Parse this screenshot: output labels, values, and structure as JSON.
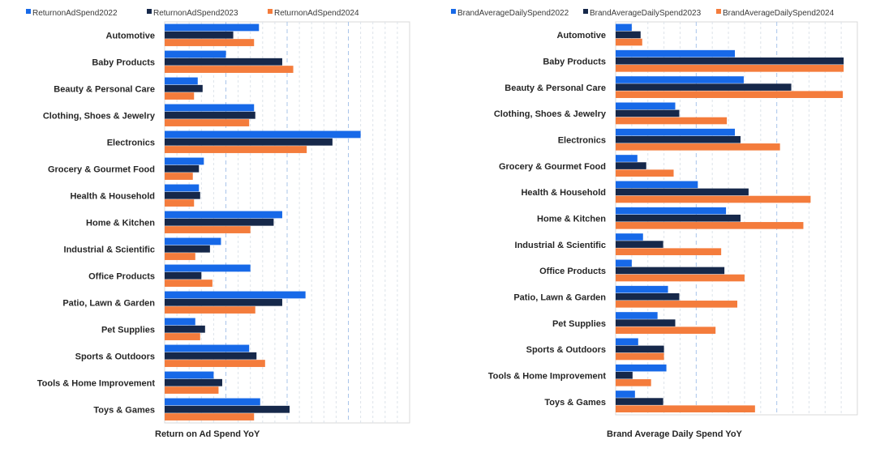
{
  "colors": {
    "s2022": "#1769e8",
    "s2023": "#16284a",
    "s2024": "#f47c3c",
    "grid": "#dde3ea",
    "grid_major": "#a9c4ea",
    "plot_border": "#d9d9d9"
  },
  "chart_data": [
    {
      "type": "bar",
      "orientation": "horizontal",
      "xlabel": "Return on Ad Spend YoY",
      "grid": true,
      "legend_position": "top",
      "xlim": [
        0,
        20
      ],
      "categories": [
        "Automotive",
        "Baby Products",
        "Beauty & Personal Care",
        "Clothing, Shoes & Jewelry",
        "Electronics",
        "Grocery & Gourmet Food",
        "Health & Household",
        "Home & Kitchen",
        "Industrial & Scientific",
        "Office Products",
        "Patio, Lawn & Garden",
        "Pet Supplies",
        "Sports & Outdoors",
        "Tools & Home Improvement",
        "Toys & Games"
      ],
      "series": [
        {
          "name": "ReturnonAdSpend2022",
          "values": [
            7.7,
            5.0,
            2.7,
            7.3,
            16.0,
            3.2,
            2.8,
            9.6,
            4.6,
            7.0,
            11.5,
            2.5,
            6.9,
            4.0,
            7.8
          ]
        },
        {
          "name": "ReturnonAdSpend2023",
          "values": [
            5.6,
            9.6,
            3.1,
            7.4,
            13.7,
            2.8,
            2.9,
            8.9,
            3.7,
            3.0,
            9.6,
            3.3,
            7.5,
            4.7,
            10.2
          ]
        },
        {
          "name": "ReturnonAdSpend2024",
          "values": [
            7.3,
            10.5,
            2.4,
            6.9,
            11.6,
            2.3,
            2.4,
            7.0,
            2.5,
            3.9,
            7.4,
            2.9,
            8.2,
            4.4,
            7.3
          ]
        }
      ]
    },
    {
      "type": "bar",
      "orientation": "horizontal",
      "xlabel": "Brand Average Daily Spend YoY",
      "grid": true,
      "legend_position": "top",
      "xlim": [
        0,
        30
      ],
      "categories": [
        "Automotive",
        "Baby Products",
        "Beauty & Personal Care",
        "Clothing, Shoes & Jewelry",
        "Electronics",
        "Grocery & Gourmet Food",
        "Health & Household",
        "Home & Kitchen",
        "Industrial & Scientific",
        "Office Products",
        "Patio, Lawn & Garden",
        "Pet Supplies",
        "Sports & Outdoors",
        "Tools & Home Improvement",
        "Toys & Games"
      ],
      "series": [
        {
          "name": "BrandAverageDailySpend2022",
          "values": [
            2.0,
            14.8,
            15.9,
            7.4,
            14.8,
            2.7,
            10.2,
            13.7,
            3.4,
            2.0,
            6.5,
            5.2,
            2.8,
            6.3,
            2.4
          ]
        },
        {
          "name": "BrandAverageDailySpend2023",
          "values": [
            3.1,
            28.3,
            21.8,
            7.9,
            15.5,
            3.8,
            16.5,
            15.5,
            5.9,
            13.5,
            7.9,
            7.4,
            6.0,
            2.1,
            5.9
          ]
        },
        {
          "name": "BrandAverageDailySpend2024",
          "values": [
            3.3,
            28.3,
            28.2,
            13.8,
            20.4,
            7.2,
            24.2,
            23.3,
            13.1,
            16.0,
            15.1,
            12.4,
            6.0,
            4.4,
            17.3
          ]
        }
      ]
    }
  ]
}
